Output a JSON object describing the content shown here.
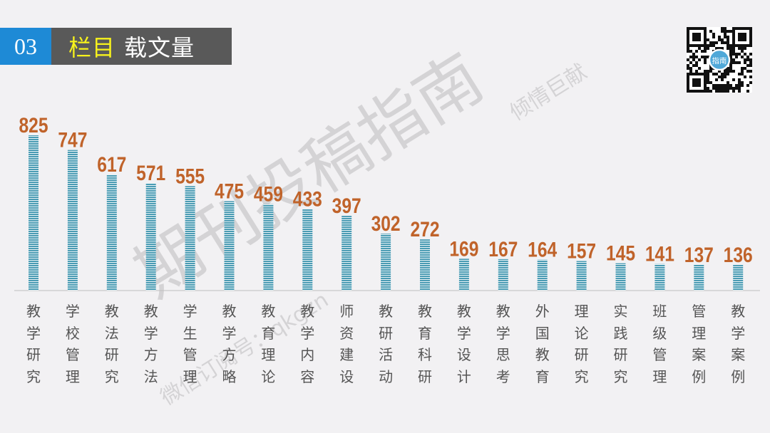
{
  "header": {
    "number": "03",
    "title_highlight": "栏目",
    "title_rest": "载文量"
  },
  "watermarks": {
    "main": "期刊投稿指南",
    "sub": "倾情巨献",
    "subscription": "微信订阅号：qkgzn",
    "qr_center": "指南"
  },
  "colors": {
    "bar": "#4a9bb3",
    "label": "#c0632a",
    "accent": "#1e8ad6"
  },
  "chart_data": {
    "type": "bar",
    "title": "栏目载文量",
    "categories": [
      "教学研究",
      "学校管理",
      "教法研究",
      "教学方法",
      "学生管理",
      "教学方略",
      "教育理论",
      "教学内容",
      "师资建设",
      "教研活动",
      "教育科研",
      "教学设计",
      "教学思考",
      "外国教育",
      "理论研究",
      "实践研究",
      "班级管理",
      "管理案例",
      "教学案例"
    ],
    "values": [
      825,
      747,
      617,
      571,
      555,
      475,
      459,
      433,
      397,
      302,
      272,
      169,
      167,
      164,
      157,
      145,
      141,
      137,
      136
    ],
    "ylim": [
      0,
      850
    ],
    "grid": false,
    "data_labels": true
  }
}
